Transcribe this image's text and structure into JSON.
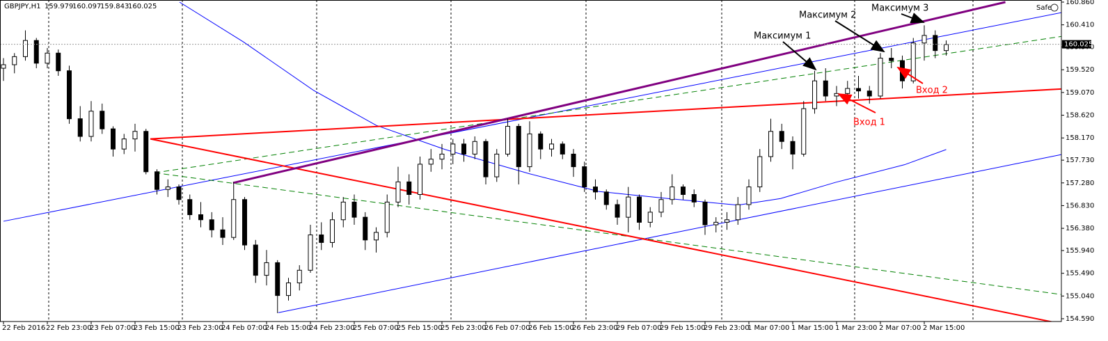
{
  "chart_data": {
    "type": "candlestick",
    "symbol": "GBPJPY,H1",
    "quote": [
      159.979,
      160.097,
      159.843,
      160.025
    ],
    "last_price": 160.025,
    "badge": "Safe",
    "ylim": [
      154.59,
      160.86
    ],
    "yticks": [
      {
        "value": 160.86,
        "label": "160.860"
      },
      {
        "value": 160.41,
        "label": "160.410"
      },
      {
        "value": 159.97,
        "label": "159.970"
      },
      {
        "value": 159.52,
        "label": "159.520"
      },
      {
        "value": 159.07,
        "label": "159.070"
      },
      {
        "value": 158.62,
        "label": "158.620"
      },
      {
        "value": 158.17,
        "label": "158.170"
      },
      {
        "value": 157.73,
        "label": "157.730"
      },
      {
        "value": 157.28,
        "label": "157.280"
      },
      {
        "value": 156.83,
        "label": "156.830"
      },
      {
        "value": 156.38,
        "label": "156.380"
      },
      {
        "value": 155.94,
        "label": "155.940"
      },
      {
        "value": 155.49,
        "label": "155.490"
      },
      {
        "value": 155.04,
        "label": "155.040"
      },
      {
        "value": 154.59,
        "label": "154.590"
      }
    ],
    "categories": [
      "22 Feb 2016",
      null,
      null,
      null,
      "22 Feb 23:00",
      null,
      null,
      null,
      "23 Feb 07:00",
      null,
      null,
      null,
      "23 Feb 15:00",
      null,
      null,
      null,
      "23 Feb 23:00",
      null,
      null,
      null,
      "24 Feb 07:00",
      null,
      null,
      null,
      "24 Feb 15:00",
      null,
      null,
      null,
      "24 Feb 23:00",
      null,
      null,
      null,
      "25 Feb 07:00",
      null,
      null,
      null,
      "25 Feb 15:00",
      null,
      null,
      null,
      "25 Feb 23:00",
      null,
      null,
      null,
      "26 Feb 07:00",
      null,
      null,
      null,
      "26 Feb 15:00",
      null,
      null,
      null,
      "26 Feb 23:00",
      null,
      null,
      null,
      "29 Feb 07:00",
      null,
      null,
      null,
      "29 Feb 15:00",
      null,
      null,
      null,
      "29 Feb 23:00",
      null,
      null,
      null,
      "1 Mar 07:00",
      null,
      null,
      null,
      "1 Mar 15:00",
      null,
      null,
      null,
      "1 Mar 23:00",
      null,
      null,
      null,
      "2 Mar 07:00",
      null,
      null,
      null,
      "2 Mar 15:00",
      null,
      null
    ],
    "open": [
      159.55,
      159.62,
      159.78,
      160.1,
      159.65,
      159.85,
      159.5,
      158.55,
      158.2,
      158.7,
      158.35,
      157.95,
      158.15,
      158.3,
      157.5,
      157.15,
      157.2,
      156.95,
      156.65,
      156.55,
      156.35,
      156.2,
      156.95,
      156.05,
      155.45,
      155.7,
      155.05,
      155.3,
      155.55,
      156.25,
      156.1,
      156.55,
      156.9,
      156.6,
      156.15,
      156.3,
      156.9,
      157.3,
      157.05,
      157.65,
      157.75,
      157.85,
      158.05,
      157.85,
      158.1,
      157.4,
      157.85,
      158.4,
      157.6,
      158.25,
      157.95,
      158.05,
      157.85,
      157.6,
      157.2,
      157.1,
      156.85,
      156.6,
      157.0,
      156.5,
      156.7,
      156.95,
      157.2,
      157.05,
      156.9,
      156.45,
      156.5,
      156.55,
      156.85,
      157.2,
      157.8,
      158.3,
      158.1,
      157.85,
      158.75,
      159.3,
      159.0,
      159.05,
      159.15,
      159.1,
      159.0,
      159.75,
      159.7,
      159.3,
      160.05,
      160.2,
      159.9
    ],
    "high": [
      159.75,
      159.85,
      160.3,
      160.15,
      159.95,
      159.92,
      159.6,
      158.8,
      158.9,
      158.85,
      158.4,
      158.25,
      158.45,
      158.35,
      157.55,
      157.35,
      157.25,
      157.05,
      156.9,
      156.7,
      156.6,
      157.3,
      157.0,
      156.15,
      155.95,
      155.75,
      155.4,
      155.65,
      156.45,
      156.5,
      156.7,
      157.0,
      157.05,
      156.7,
      156.4,
      157.05,
      157.6,
      157.45,
      157.8,
      157.95,
      158.05,
      158.15,
      158.15,
      158.2,
      158.15,
      157.95,
      158.55,
      158.45,
      158.5,
      158.3,
      158.15,
      158.1,
      157.95,
      157.7,
      157.35,
      157.15,
      156.95,
      157.2,
      157.05,
      156.8,
      157.1,
      157.45,
      157.25,
      157.15,
      156.95,
      156.6,
      156.7,
      157.0,
      157.35,
      157.95,
      158.55,
      158.45,
      158.2,
      158.9,
      159.5,
      159.55,
      159.2,
      159.3,
      159.4,
      159.2,
      159.85,
      159.95,
      159.8,
      160.15,
      160.4,
      160.3,
      160.1
    ],
    "low": [
      159.3,
      159.45,
      159.7,
      159.55,
      159.55,
      159.4,
      158.45,
      158.1,
      158.1,
      158.25,
      157.8,
      157.85,
      157.9,
      157.45,
      157.05,
      157.0,
      156.85,
      156.55,
      156.4,
      156.2,
      156.05,
      156.15,
      155.95,
      155.3,
      155.25,
      154.7,
      154.95,
      155.15,
      155.5,
      155.95,
      156.0,
      156.4,
      156.45,
      155.95,
      155.9,
      156.2,
      156.8,
      156.85,
      156.95,
      157.5,
      157.55,
      157.65,
      157.7,
      157.75,
      157.25,
      157.3,
      157.8,
      157.25,
      157.5,
      157.75,
      157.8,
      157.75,
      157.4,
      157.1,
      156.95,
      156.75,
      156.45,
      156.3,
      156.35,
      156.4,
      156.6,
      156.85,
      156.95,
      156.8,
      156.25,
      156.3,
      156.35,
      156.45,
      156.75,
      157.1,
      157.7,
      157.95,
      157.55,
      157.8,
      158.65,
      158.9,
      158.8,
      158.85,
      158.95,
      158.85,
      158.95,
      159.55,
      159.15,
      159.25,
      159.7,
      159.75,
      159.8
    ],
    "close": [
      159.62,
      159.78,
      160.1,
      159.65,
      159.85,
      159.5,
      158.55,
      158.2,
      158.7,
      158.35,
      157.95,
      158.15,
      158.3,
      157.5,
      157.15,
      157.2,
      156.95,
      156.65,
      156.55,
      156.35,
      156.2,
      156.95,
      156.05,
      155.45,
      155.7,
      155.05,
      155.3,
      155.55,
      156.25,
      156.1,
      156.55,
      156.9,
      156.6,
      156.15,
      156.3,
      156.9,
      157.3,
      157.05,
      157.65,
      157.75,
      157.85,
      158.05,
      157.85,
      158.1,
      157.4,
      157.85,
      158.4,
      157.6,
      158.25,
      157.95,
      158.05,
      157.85,
      157.6,
      157.2,
      157.1,
      156.85,
      156.6,
      157.0,
      156.5,
      156.7,
      156.95,
      157.2,
      157.05,
      156.9,
      156.45,
      156.5,
      156.55,
      156.85,
      157.2,
      157.8,
      158.3,
      158.1,
      157.85,
      158.75,
      159.3,
      159.0,
      159.05,
      159.15,
      159.1,
      159.0,
      159.75,
      159.7,
      159.3,
      160.05,
      160.2,
      159.9,
      160.02
    ],
    "lines": [
      {
        "color": "#0000ff",
        "width": 1,
        "dash": false,
        "x": [
          16.06,
          21.9,
          28.3,
          34,
          40.3,
          48,
          54.3,
          60.6,
          67,
          70.9,
          75.9,
          82.2,
          86
        ],
        "y": [
          160.86,
          160.07,
          159.11,
          158.42,
          157.94,
          157.46,
          157.11,
          156.97,
          156.84,
          156.97,
          157.29,
          157.64,
          157.94
        ]
      },
      {
        "color": "#0000ff",
        "width": 1,
        "dash": false,
        "x": [
          0,
          99.05
        ],
        "y": [
          156.52,
          160.76
        ]
      },
      {
        "color": "#0000ff",
        "width": 1,
        "dash": false,
        "x": [
          25.08,
          96.5
        ],
        "y": [
          154.71,
          157.84
        ]
      },
      {
        "color": "#008000",
        "width": 1,
        "dash": true,
        "x": [
          13.8,
          96.5
        ],
        "y": [
          157.48,
          160.18
        ]
      },
      {
        "color": "#008000",
        "width": 1,
        "dash": true,
        "x": [
          13.8,
          96.5
        ],
        "y": [
          157.48,
          155.07
        ]
      },
      {
        "color": "#ff0000",
        "width": 2,
        "dash": false,
        "x": [
          13.4,
          96.5
        ],
        "y": [
          158.15,
          159.14
        ]
      },
      {
        "color": "#ff0000",
        "width": 2,
        "dash": false,
        "x": [
          13.4,
          95.6
        ],
        "y": [
          158.15,
          154.53
        ]
      },
      {
        "color": "#800080",
        "width": 3,
        "dash": false,
        "x": [
          20.95,
          91.4
        ],
        "y": [
          157.28,
          160.86
        ]
      }
    ],
    "annotations": [
      "Максимум 1",
      "Максимум 2",
      "Максимум 3",
      "Вход 1",
      "Вход 2"
    ]
  }
}
